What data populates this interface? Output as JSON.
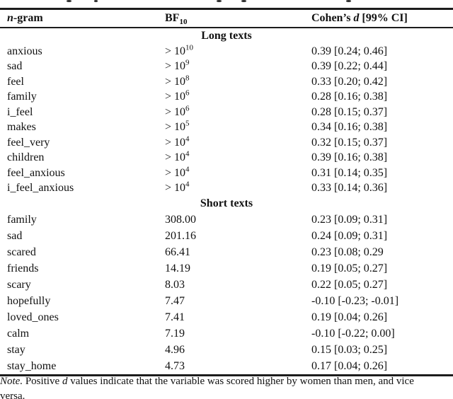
{
  "top_edge_fragment": "cut-off caption line (only letter descenders visible)",
  "table": {
    "headers": {
      "col1_italic": "n",
      "col1_rest": "-gram",
      "col2_base": "BF",
      "col2_sub": "10",
      "col3_prefix": "Cohen’s ",
      "col3_italic": "d",
      "col3_suffix": " [99% CI]"
    },
    "sections": [
      {
        "label": "Long texts",
        "rows": [
          {
            "ngram": "anxious",
            "bf_base": "> 10",
            "bf_sup": "10",
            "d": "0.39 [0.24; 0.46]"
          },
          {
            "ngram": "sad",
            "bf_base": "> 10",
            "bf_sup": "9",
            "d": "0.39 [0.22; 0.44]"
          },
          {
            "ngram": "feel",
            "bf_base": "> 10",
            "bf_sup": "8",
            "d": "0.33 [0.20; 0.42]"
          },
          {
            "ngram": "family",
            "bf_base": "> 10",
            "bf_sup": "6",
            "d": "0.28 [0.16; 0.38]"
          },
          {
            "ngram": "i_feel",
            "bf_base": "> 10",
            "bf_sup": "6",
            "d": "0.28 [0.15; 0.37]"
          },
          {
            "ngram": "makes",
            "bf_base": "> 10",
            "bf_sup": "5",
            "d": "0.34 [0.16; 0.38]"
          },
          {
            "ngram": "feel_very",
            "bf_base": "> 10",
            "bf_sup": "4",
            "d": "0.32 [0.15; 0.37]"
          },
          {
            "ngram": "children",
            "bf_base": "> 10",
            "bf_sup": "4",
            "d": "0.39 [0.16; 0.38]"
          },
          {
            "ngram": "feel_anxious",
            "bf_base": "> 10",
            "bf_sup": "4",
            "d": "0.31 [0.14; 0.35]"
          },
          {
            "ngram": "i_feel_anxious",
            "bf_base": "> 10",
            "bf_sup": "4",
            "d": "0.33 [0.14; 0.36]"
          }
        ]
      },
      {
        "label": "Short texts",
        "rows": [
          {
            "ngram": "family",
            "bf": "308.00",
            "d": "0.23 [0.09; 0.31]"
          },
          {
            "ngram": "sad",
            "bf": "201.16",
            "d": "0.24 [0.09; 0.31]"
          },
          {
            "ngram": "scared",
            "bf": "66.41",
            "d": "0.23 [0.08; 0.29"
          },
          {
            "ngram": "friends",
            "bf": "14.19",
            "d": "0.19 [0.05; 0.27]"
          },
          {
            "ngram": "scary",
            "bf": "8.03",
            "d": "0.22 [0.05; 0.27]"
          },
          {
            "ngram": "hopefully",
            "bf": "7.47",
            "d": "-0.10 [-0.23; -0.01]"
          },
          {
            "ngram": "loved_ones",
            "bf": "7.41",
            "d": "0.19 [0.04; 0.26]"
          },
          {
            "ngram": "calm",
            "bf": "7.19",
            "d": "-0.10 [-0.22; 0.00]"
          },
          {
            "ngram": "stay",
            "bf": "4.96",
            "d": "0.15 [0.03; 0.25]"
          },
          {
            "ngram": "stay_home",
            "bf": "4.73",
            "d": "0.17 [0.04; 0.26]"
          }
        ]
      }
    ]
  },
  "note": {
    "label": "Note.",
    "seg1": " Positive ",
    "italic_d": "d",
    "seg2": " values indicate that the variable was scored higher by women than men, and vice",
    "line2": "versa."
  }
}
